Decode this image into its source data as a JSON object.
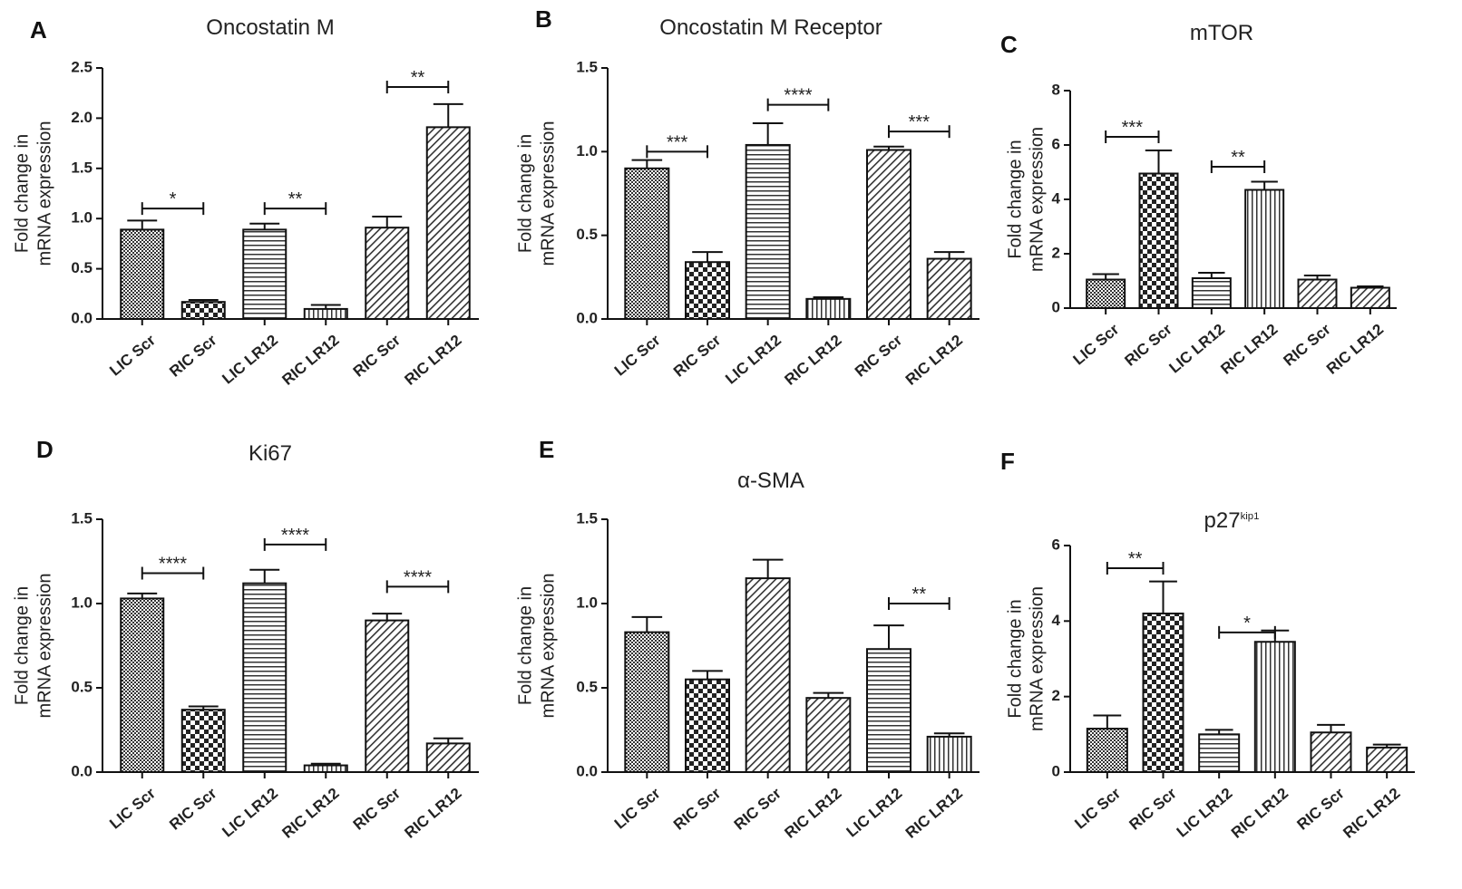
{
  "figure": {
    "panel_labels": [
      "A",
      "B",
      "C",
      "D",
      "E",
      "F"
    ]
  },
  "chart_data": [
    {
      "panel": "A",
      "type": "bar",
      "title": "Oncostatin M",
      "ylabel_lines": [
        "Fold change in",
        "mRNA expression"
      ],
      "categories": [
        "LIC Scr",
        "RIC Scr",
        "LIC LR12",
        "RIC LR12",
        "RIC Scr",
        "RIC LR12"
      ],
      "values": [
        0.89,
        0.17,
        0.89,
        0.1,
        0.91,
        1.91
      ],
      "errors": [
        0.09,
        0.02,
        0.06,
        0.04,
        0.11,
        0.23
      ],
      "patterns": [
        "cross",
        "checker",
        "hlines",
        "vlines",
        "diag",
        "diag"
      ],
      "ylim": [
        0,
        2.5
      ],
      "yticks": [
        0,
        0.5,
        1.0,
        1.5,
        2.0,
        2.5
      ],
      "ytick_labels": [
        "0.0",
        "0.5",
        "1.0",
        "1.5",
        "2.0",
        "2.5"
      ],
      "significance": [
        {
          "from": 0,
          "to": 1,
          "label": "*",
          "y": 1.1
        },
        {
          "from": 2,
          "to": 3,
          "label": "**",
          "y": 1.1
        },
        {
          "from": 4,
          "to": 5,
          "label": "**",
          "y": 2.31
        }
      ]
    },
    {
      "panel": "B",
      "type": "bar",
      "title": "Oncostatin M Receptor",
      "ylabel_lines": [
        "Fold change in",
        "mRNA expression"
      ],
      "categories": [
        "LIC Scr",
        "RIC Scr",
        "LIC LR12",
        "RIC LR12",
        "RIC Scr",
        "RIC LR12"
      ],
      "values": [
        0.9,
        0.34,
        1.04,
        0.12,
        1.01,
        0.36
      ],
      "errors": [
        0.05,
        0.06,
        0.13,
        0.01,
        0.02,
        0.04
      ],
      "patterns": [
        "cross",
        "checker",
        "hlines",
        "vlines",
        "diag",
        "diag"
      ],
      "ylim": [
        0,
        1.5
      ],
      "yticks": [
        0,
        0.5,
        1.0,
        1.5
      ],
      "ytick_labels": [
        "0.0",
        "0.5",
        "1.0",
        "1.5"
      ],
      "significance": [
        {
          "from": 0,
          "to": 1,
          "label": "***",
          "y": 1.0
        },
        {
          "from": 2,
          "to": 3,
          "label": "****",
          "y": 1.28
        },
        {
          "from": 4,
          "to": 5,
          "label": "***",
          "y": 1.12
        }
      ]
    },
    {
      "panel": "C",
      "type": "bar",
      "title": "mTOR",
      "ylabel_lines": [
        "Fold change in",
        "mRNA expression"
      ],
      "categories": [
        "LIC Scr",
        "RIC Scr",
        "LIC LR12",
        "RIC LR12",
        "RIC Scr",
        "RIC LR12"
      ],
      "values": [
        1.05,
        4.95,
        1.1,
        4.35,
        1.05,
        0.75
      ],
      "errors": [
        0.2,
        0.85,
        0.2,
        0.3,
        0.15,
        0.05
      ],
      "patterns": [
        "cross",
        "checker",
        "hlines",
        "vlines",
        "diag",
        "diag"
      ],
      "ylim": [
        0,
        8
      ],
      "yticks": [
        0,
        2,
        4,
        6,
        8
      ],
      "ytick_labels": [
        "0",
        "2",
        "4",
        "6",
        "8"
      ],
      "significance": [
        {
          "from": 0,
          "to": 1,
          "label": "***",
          "y": 6.3
        },
        {
          "from": 2,
          "to": 3,
          "label": "**",
          "y": 5.2
        }
      ]
    },
    {
      "panel": "D",
      "type": "bar",
      "title": "Ki67",
      "ylabel_lines": [
        "Fold change in",
        "mRNA expression"
      ],
      "categories": [
        "LIC Scr",
        "RIC Scr",
        "LIC LR12",
        "RIC LR12",
        "RIC Scr",
        "RIC LR12"
      ],
      "values": [
        1.03,
        0.37,
        1.12,
        0.04,
        0.9,
        0.17
      ],
      "errors": [
        0.03,
        0.02,
        0.08,
        0.01,
        0.04,
        0.03
      ],
      "patterns": [
        "cross",
        "checker",
        "hlines",
        "vlines",
        "diag",
        "diag"
      ],
      "ylim": [
        0,
        1.5
      ],
      "yticks": [
        0,
        0.5,
        1.0,
        1.5
      ],
      "ytick_labels": [
        "0.0",
        "0.5",
        "1.0",
        "1.5"
      ],
      "significance": [
        {
          "from": 0,
          "to": 1,
          "label": "****",
          "y": 1.18
        },
        {
          "from": 2,
          "to": 3,
          "label": "****",
          "y": 1.35
        },
        {
          "from": 4,
          "to": 5,
          "label": "****",
          "y": 1.1
        }
      ]
    },
    {
      "panel": "E",
      "type": "bar",
      "title": "α-SMA",
      "ylabel_lines": [
        "Fold change in",
        "mRNA expression"
      ],
      "categories": [
        "LIC Scr",
        "RIC Scr",
        "RIC Scr",
        "RIC LR12",
        "LIC LR12",
        "RIC LR12"
      ],
      "values": [
        0.83,
        0.55,
        1.15,
        0.44,
        0.73,
        0.21
      ],
      "errors": [
        0.09,
        0.05,
        0.11,
        0.03,
        0.14,
        0.02
      ],
      "patterns": [
        "cross",
        "checker",
        "diag",
        "diag",
        "hlines",
        "vlines"
      ],
      "ylim": [
        0,
        1.5
      ],
      "yticks": [
        0,
        0.5,
        1.0,
        1.5
      ],
      "ytick_labels": [
        "0.0",
        "0.5",
        "1.0",
        "1.5"
      ],
      "significance": [
        {
          "from": 4,
          "to": 5,
          "label": "**",
          "y": 1.0
        }
      ]
    },
    {
      "panel": "F",
      "type": "bar",
      "title": "p27",
      "title_superscript": "kip1",
      "ylabel_lines": [
        "Fold change in",
        "mRNA expression"
      ],
      "categories": [
        "LIC Scr",
        "RIC Scr",
        "LIC LR12",
        "RIC LR12",
        "RIC Scr",
        "RIC LR12"
      ],
      "values": [
        1.15,
        4.2,
        1.0,
        3.45,
        1.05,
        0.65
      ],
      "errors": [
        0.35,
        0.85,
        0.12,
        0.3,
        0.2,
        0.08
      ],
      "patterns": [
        "cross",
        "checker",
        "hlines",
        "vlines",
        "diag",
        "diag"
      ],
      "ylim": [
        0,
        6
      ],
      "yticks": [
        0,
        2,
        4,
        6
      ],
      "ytick_labels": [
        "0",
        "2",
        "4",
        "6"
      ],
      "significance": [
        {
          "from": 0,
          "to": 1,
          "label": "**",
          "y": 5.4
        },
        {
          "from": 2,
          "to": 3,
          "label": "*",
          "y": 3.7
        }
      ]
    }
  ]
}
